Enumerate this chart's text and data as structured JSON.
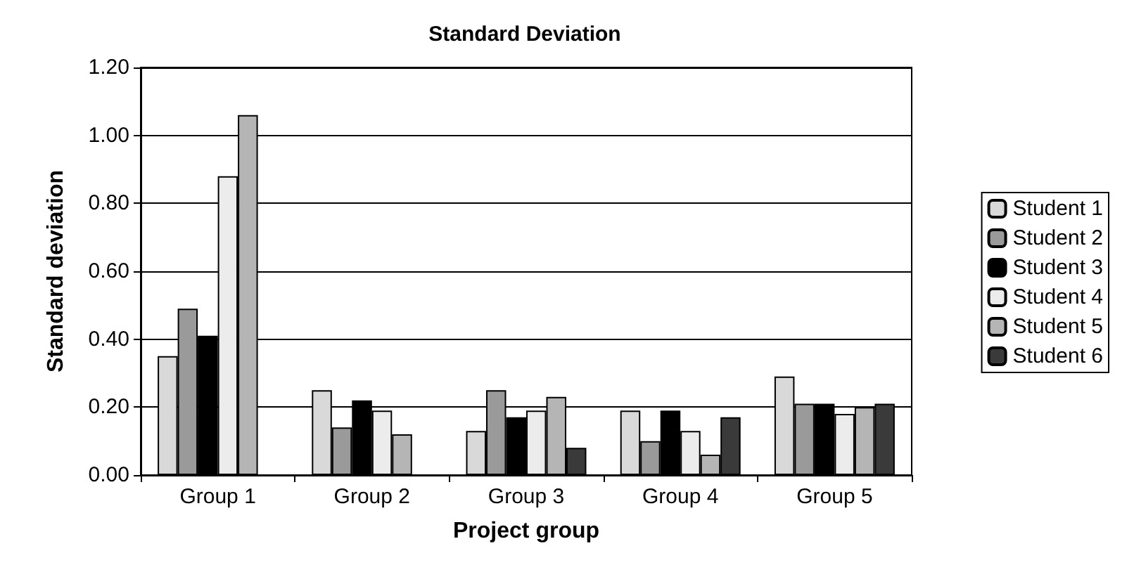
{
  "chart_data": {
    "type": "bar",
    "title": "Standard Deviation",
    "xlabel": "Project group",
    "ylabel": "Standard deviation",
    "categories": [
      "Group 1",
      "Group 2",
      "Group 3",
      "Group 4",
      "Group 5"
    ],
    "series": [
      {
        "name": "Student 1",
        "color": "#d9d9d9",
        "values": [
          0.35,
          0.25,
          0.13,
          0.19,
          0.29
        ]
      },
      {
        "name": "Student 2",
        "color": "#9a9a9a",
        "values": [
          0.49,
          0.14,
          0.25,
          0.1,
          0.21
        ]
      },
      {
        "name": "Student 3",
        "color": "#000000",
        "values": [
          0.41,
          0.22,
          0.17,
          0.19,
          0.21
        ]
      },
      {
        "name": "Student 4",
        "color": "#ececec",
        "values": [
          0.88,
          0.19,
          0.19,
          0.13,
          0.18
        ]
      },
      {
        "name": "Student 5",
        "color": "#b5b5b5",
        "values": [
          1.06,
          0.12,
          0.23,
          0.06,
          0.2
        ]
      },
      {
        "name": "Student 6",
        "color": "#3a3a3a",
        "values": [
          null,
          null,
          0.08,
          0.17,
          0.21
        ]
      }
    ],
    "ylim": [
      0,
      1.2
    ],
    "yticks": [
      {
        "value": 0,
        "label": "0.00"
      },
      {
        "value": 0.2,
        "label": "0.20"
      },
      {
        "value": 0.4,
        "label": "0.40"
      },
      {
        "value": 0.6,
        "label": "0.60"
      },
      {
        "value": 0.8,
        "label": "0.80"
      },
      {
        "value": 1,
        "label": "1.00"
      },
      {
        "value": 1.2,
        "label": "1.20"
      }
    ],
    "grid": "y",
    "legend": "right"
  }
}
